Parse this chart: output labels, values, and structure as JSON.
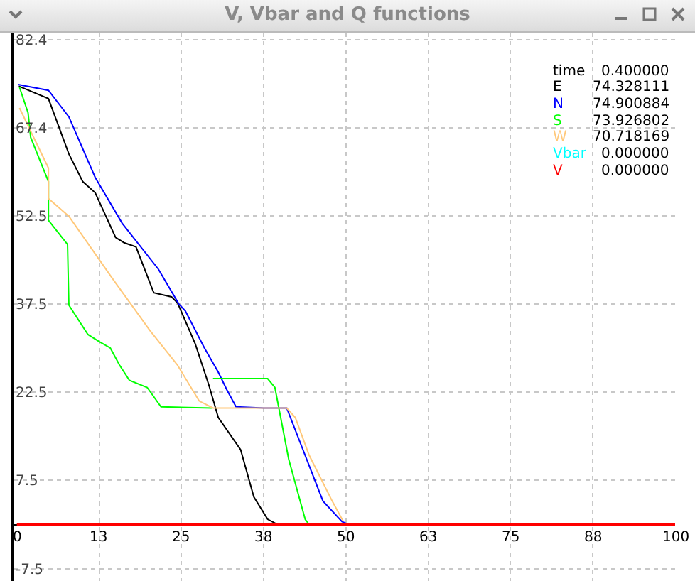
{
  "chart_data": {
    "type": "line",
    "title": "V, Vbar and Q functions",
    "xlim": [
      -0.4,
      100
    ],
    "xticks": [
      0,
      {
        "value": 12.5,
        "label": "13"
      },
      25,
      {
        "value": 37.5,
        "label": "38"
      },
      50,
      {
        "value": 62.5,
        "label": "63"
      },
      75,
      {
        "value": 87.5,
        "label": "88"
      },
      100
    ],
    "ylim": [
      -9.6,
      83.6
    ],
    "yticks": [
      -7.5,
      7.5,
      22.5,
      37.5,
      52.5,
      67.4,
      82.4
    ],
    "grid": true,
    "legend": "top right",
    "annotations": [
      "time",
      "0.400000",
      "74.328111",
      "74.900884",
      "73.926802",
      "70.718169",
      "0.000000",
      "0.000000"
    ],
    "series": [
      {
        "name": "E",
        "color": "#000000",
        "x": [
          0.3,
          4.8,
          7.9,
          10,
          11.9,
          15,
          16.3,
          18.1,
          20.8,
          23.5,
          24.4,
          27.1,
          29.2,
          30.6,
          34,
          36,
          38.1,
          39.6
        ],
        "values": [
          74.5,
          72.4,
          63,
          58.3,
          56.4,
          48.8,
          47.9,
          47.2,
          39.4,
          38.7,
          37.7,
          30.7,
          23.6,
          18.2,
          12.7,
          4.7,
          0.9,
          0
        ]
      },
      {
        "name": "N",
        "color": "#0000ff",
        "x": [
          0.2,
          4.8,
          7.9,
          11.9,
          16,
          21.5,
          24.6,
          25.6,
          28.5,
          30.6,
          31.9,
          33.3,
          37.5,
          41,
          46.5,
          49.4,
          50.4
        ],
        "values": [
          74.8,
          73.8,
          69.3,
          59,
          51.2,
          43.4,
          37.5,
          36.3,
          30,
          25.9,
          22.9,
          20,
          19.8,
          19.8,
          4,
          0.5,
          0
        ]
      },
      {
        "name": "S",
        "color": "#00ff00",
        "x": [
          0.4,
          1.7,
          2.1,
          4.8,
          4.8,
          7.7,
          7.9,
          10.8,
          12.5,
          14.2,
          15.6,
          17.1,
          19.8,
          21.9,
          29.6,
          29.7,
          29.8,
          38.1,
          39.2,
          41.3,
          43.8,
          44.4
        ],
        "values": [
          74.3,
          70,
          65.8,
          58.3,
          51.7,
          47.6,
          37.3,
          32.3,
          31.1,
          30,
          27.1,
          24.5,
          23.3,
          20,
          19.8,
          null,
          24.8,
          24.8,
          23.3,
          11.1,
          0.9,
          0
        ]
      },
      {
        "name": "W",
        "color": "#ffc87a",
        "x": [
          0.4,
          4.8,
          4.8,
          7.9,
          14.6,
          20.2,
          24.4,
          27.7,
          29.8,
          41,
          42.3,
          44.4,
          47.9,
          49.6
        ],
        "values": [
          70.8,
          60.6,
          55.4,
          52.4,
          41.7,
          33,
          27.1,
          21,
          19.8,
          19.8,
          18.2,
          11.8,
          4,
          0.5
        ]
      },
      {
        "name": "Vbar",
        "color": "#00ffff",
        "values": [
          null
        ]
      },
      {
        "name": "V",
        "color": "#ff0000",
        "x": [
          0,
          100
        ],
        "values": [
          0,
          0
        ]
      }
    ]
  }
}
